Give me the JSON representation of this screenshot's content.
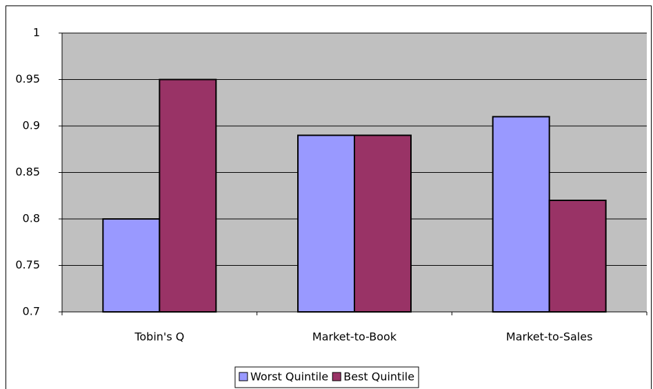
{
  "chart_data": {
    "type": "bar",
    "categories": [
      "Tobin's Q",
      "Market-to-Book",
      "Market-to-Sales"
    ],
    "series": [
      {
        "name": "Worst Quintile",
        "color": "#9999ff",
        "values": [
          0.8,
          0.89,
          0.91
        ]
      },
      {
        "name": "Best Quintile",
        "color": "#993366",
        "values": [
          0.95,
          0.89,
          0.82
        ]
      }
    ],
    "ylim": [
      0.7,
      1
    ],
    "yticks": [
      0.7,
      0.75,
      0.8,
      0.85,
      0.9,
      0.95,
      1
    ],
    "grid": true,
    "plot_background": "#c0c0c0",
    "legend": "bottom"
  }
}
